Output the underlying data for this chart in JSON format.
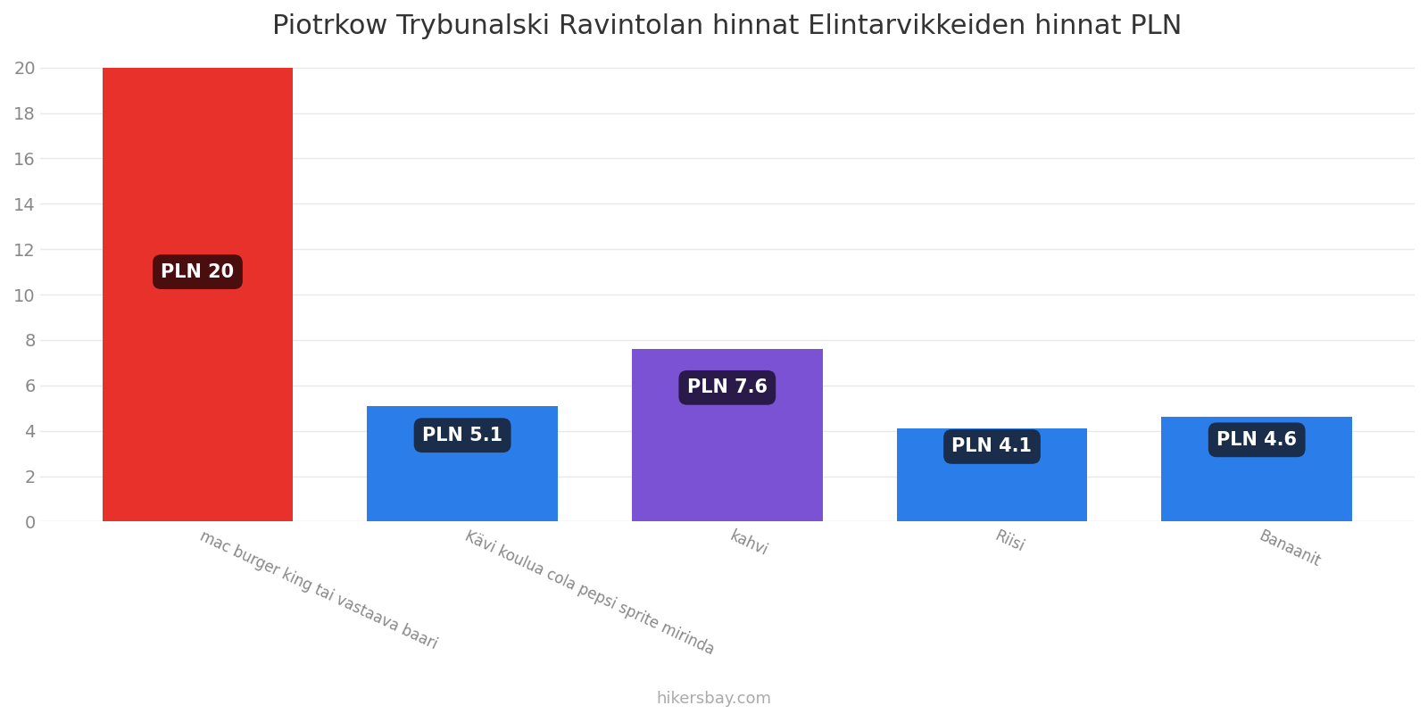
{
  "title": "Piotrkow Trybunalski Ravintolan hinnat Elintarvikkeiden hinnat PLN",
  "categories": [
    "mac burger king tai vastaava baari",
    "Kävi koulua cola pepsi sprite mirinda",
    "kahvi",
    "Riisi",
    "Banaanit"
  ],
  "values": [
    20,
    5.1,
    7.6,
    4.1,
    4.6
  ],
  "bar_colors": [
    "#e8312a",
    "#2b7de9",
    "#7b52d3",
    "#2b7de9",
    "#2b7de9"
  ],
  "label_bg_colors": [
    "#4a0e0e",
    "#1a2d4a",
    "#2a1a4a",
    "#1a2d4a",
    "#1a2d4a"
  ],
  "labels": [
    "PLN 20",
    "PLN 5.1",
    "PLN 7.6",
    "PLN 4.1",
    "PLN 4.6"
  ],
  "label_y_positions": [
    11.0,
    3.8,
    5.9,
    3.3,
    3.6
  ],
  "ylim": [
    0,
    20.5
  ],
  "yticks": [
    0,
    2,
    4,
    6,
    8,
    10,
    12,
    14,
    16,
    18,
    20
  ],
  "background_color": "#ffffff",
  "grid_color": "#e8e8e8",
  "watermark": "hikersbay.com",
  "title_fontsize": 22,
  "label_fontsize": 15,
  "tick_fontsize": 14,
  "xtick_fontsize": 12,
  "bar_width": 0.72
}
